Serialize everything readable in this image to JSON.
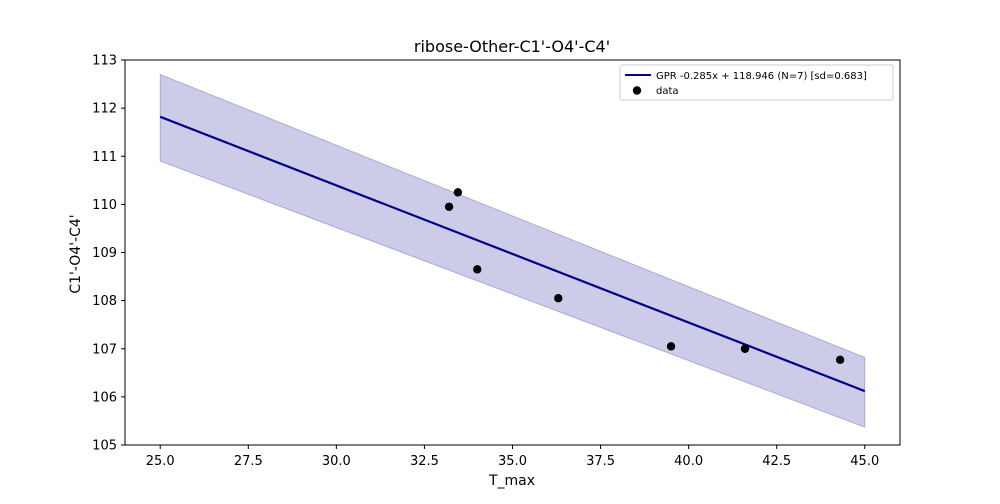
{
  "chart_data": {
    "type": "scatter",
    "title": "ribose-Other-C1'-O4'-C4'",
    "xlabel": "T_max",
    "ylabel": "C1'-O4'-C4'",
    "xlim": [
      24.0,
      46.0
    ],
    "ylim": [
      105.0,
      113.0
    ],
    "xticks": [
      "25.0",
      "27.5",
      "30.0",
      "32.5",
      "35.0",
      "37.5",
      "40.0",
      "42.5",
      "45.0"
    ],
    "yticks": [
      "105",
      "106",
      "107",
      "108",
      "109",
      "110",
      "111",
      "112",
      "113"
    ],
    "grid": false,
    "legend_position": "top-right",
    "series": [
      {
        "name": "GPR -0.285x + 118.946 (N=7) [sd=0.683]",
        "kind": "line",
        "color": "#00008b",
        "band_color": "#00008b",
        "x": [
          25.0,
          45.0
        ],
        "y": [
          111.82,
          106.12
        ],
        "band_lower": [
          110.9,
          105.37
        ],
        "band_upper": [
          112.7,
          106.82
        ]
      },
      {
        "name": "data",
        "kind": "scatter",
        "color": "#000000",
        "x": [
          33.2,
          33.45,
          34.0,
          36.3,
          39.5,
          41.6,
          44.3
        ],
        "y": [
          109.95,
          110.25,
          108.65,
          108.05,
          107.05,
          107.0,
          106.77
        ]
      }
    ]
  }
}
